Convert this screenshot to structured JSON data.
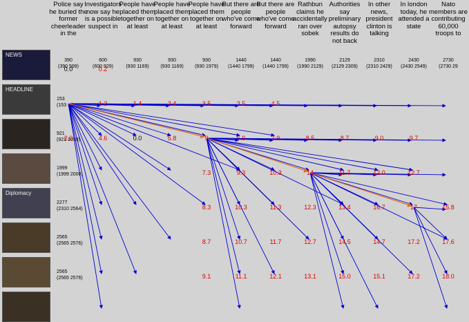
{
  "columns": [
    {
      "text": "Police say he buried the former cheerleader in the",
      "frame": "390",
      "range": "(390 599)"
    },
    {
      "text": "Investigators now say he is a possible suspect in",
      "frame": "600",
      "range": "(600 929)"
    },
    {
      "text": "People have placed them together on at least",
      "frame": "930",
      "range": "(930 1169)"
    },
    {
      "text": "People have placed them together on at least",
      "frame": "930",
      "range": "(930 1169)"
    },
    {
      "text": "People have placed them together on at least",
      "frame": "930",
      "range": "(930 1979)"
    },
    {
      "text": "But there are people who've come forward",
      "frame": "1440",
      "range": "(1440 1799)"
    },
    {
      "text": "But there are people who've come forward",
      "frame": "1440",
      "range": "(1440 1799)"
    },
    {
      "text": "Rathbun claims he accidentally ran over sobek",
      "frame": "1990",
      "range": "(1990 2129)"
    },
    {
      "text": "Authorities say preliminary autopsy results do not back",
      "frame": "2129",
      "range": "(2129 2309)"
    },
    {
      "text": "In other news, president clinton is talking",
      "frame": "2310",
      "range": "(2310 2429)"
    },
    {
      "text": "In london today, he attended a state",
      "frame": "2430",
      "range": "(2430 2549)"
    },
    {
      "text": "Nato members are contributing 60,000 troops to",
      "frame": "2730",
      "range": "(2730 29"
    }
  ],
  "rows": [
    {
      "frame": "390",
      "range": "(390 599)",
      "caption": "NEWS"
    },
    {
      "frame": "153",
      "range": "(153 ...)",
      "caption": "HEADLINE"
    },
    {
      "frame": "921",
      "range": "(921 1099)",
      "caption": ""
    },
    {
      "frame": "1999",
      "range": "(1999 2000)",
      "caption": ""
    },
    {
      "frame": "2277",
      "range": "(2310 2564)",
      "caption": "Diplomacy"
    },
    {
      "frame": "2565",
      "range": "(2565 2576)",
      "caption": ""
    },
    {
      "frame": "2565",
      "range": "(2565 2576)",
      "caption": ""
    },
    {
      "frame": "",
      "range": "",
      "caption": ""
    }
  ],
  "colors": {
    "edge": "#0000d0",
    "best_path": "#e07020",
    "score": "#dd0000",
    "zero": "#000000",
    "background": "#d3d3d3"
  },
  "graph": {
    "nodes": [
      {
        "id": "n1",
        "row": 1,
        "col": 0
      },
      {
        "id": "n2",
        "row": 2,
        "col": 4
      },
      {
        "id": "n3",
        "row": 3,
        "col": 7
      },
      {
        "id": "n4",
        "row": 4,
        "col": 10
      }
    ],
    "best_path": [
      "n1",
      "n2",
      "n3",
      "n4"
    ],
    "scores": [
      {
        "row": 0,
        "col": 0,
        "v": "0.0"
      },
      {
        "row": 0,
        "col": 1,
        "v": "0.2"
      },
      {
        "row": 1,
        "col": 1,
        "v": "1.2"
      },
      {
        "row": 1,
        "col": 2,
        "v": "1.4"
      },
      {
        "row": 1,
        "col": 3,
        "v": "2.4"
      },
      {
        "row": 1,
        "col": 4,
        "v": "3.5"
      },
      {
        "row": 1,
        "col": 5,
        "v": "3.5"
      },
      {
        "row": 1,
        "col": 6,
        "v": "4.5"
      },
      {
        "row": 2,
        "col": 0,
        "v": "2.0"
      },
      {
        "row": 2,
        "col": 1,
        "v": "4.6"
      },
      {
        "row": 2,
        "col": 2,
        "v": "0.0"
      },
      {
        "row": 2,
        "col": 3,
        "v": "5.8"
      },
      {
        "row": 2,
        "col": 4,
        "v": "9"
      },
      {
        "row": 2,
        "col": 5,
        "v": "6.9"
      },
      {
        "row": 2,
        "col": 6,
        "v": "7.9"
      },
      {
        "row": 2,
        "col": 7,
        "v": "8.5"
      },
      {
        "row": 2,
        "col": 8,
        "v": "8.7"
      },
      {
        "row": 2,
        "col": 9,
        "v": "9.0"
      },
      {
        "row": 2,
        "col": 10,
        "v": "9.7"
      },
      {
        "row": 3,
        "col": 4,
        "v": "7.3"
      },
      {
        "row": 3,
        "col": 5,
        "v": "9.3"
      },
      {
        "row": 3,
        "col": 6,
        "v": "10.3"
      },
      {
        "row": 3,
        "col": 7,
        "v": "14"
      },
      {
        "row": 3,
        "col": 8,
        "v": "11.7"
      },
      {
        "row": 3,
        "col": 9,
        "v": "12.0"
      },
      {
        "row": 3,
        "col": 10,
        "v": "12.7"
      },
      {
        "row": 4,
        "col": 4,
        "v": "8.3"
      },
      {
        "row": 4,
        "col": 5,
        "v": "10.3"
      },
      {
        "row": 4,
        "col": 6,
        "v": "11.3"
      },
      {
        "row": 4,
        "col": 7,
        "v": "12.3"
      },
      {
        "row": 4,
        "col": 8,
        "v": "13.4"
      },
      {
        "row": 4,
        "col": 9,
        "v": "16.7"
      },
      {
        "row": 4,
        "col": 10,
        "v": "17"
      },
      {
        "row": 4,
        "col": 11,
        "v": "15.8"
      },
      {
        "row": 5,
        "col": 4,
        "v": "8.7"
      },
      {
        "row": 5,
        "col": 5,
        "v": "10.7"
      },
      {
        "row": 5,
        "col": 6,
        "v": "11.7"
      },
      {
        "row": 5,
        "col": 7,
        "v": "12.7"
      },
      {
        "row": 5,
        "col": 8,
        "v": "14.5"
      },
      {
        "row": 5,
        "col": 9,
        "v": "14.7"
      },
      {
        "row": 5,
        "col": 10,
        "v": "17.2"
      },
      {
        "row": 5,
        "col": 11,
        "v": "17.6"
      },
      {
        "row": 6,
        "col": 4,
        "v": "9.1"
      },
      {
        "row": 6,
        "col": 5,
        "v": "11.1"
      },
      {
        "row": 6,
        "col": 6,
        "v": "12.1"
      },
      {
        "row": 6,
        "col": 7,
        "v": "13.1"
      },
      {
        "row": 6,
        "col": 8,
        "v": "15.0"
      },
      {
        "row": 6,
        "col": 9,
        "v": "15.1"
      },
      {
        "row": 6,
        "col": 10,
        "v": "17.2"
      },
      {
        "row": 6,
        "col": 11,
        "v": "18.0"
      }
    ]
  }
}
